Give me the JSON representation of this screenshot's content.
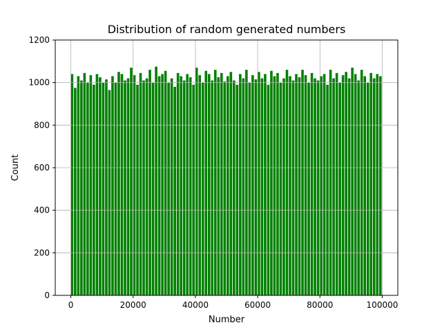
{
  "chart_data": {
    "type": "bar",
    "title": "Distribution of random generated numbers",
    "xlabel": "Number",
    "ylabel": "Count",
    "xlim": [
      -5000,
      105000
    ],
    "ylim": [
      0,
      1200
    ],
    "xticks": [
      0,
      20000,
      40000,
      60000,
      80000,
      100000
    ],
    "xtick_labels": [
      "0",
      "20000",
      "40000",
      "60000",
      "80000",
      "100000"
    ],
    "yticks": [
      0,
      200,
      400,
      600,
      800,
      1000,
      1200
    ],
    "ytick_labels": [
      "0",
      "200",
      "400",
      "600",
      "800",
      "1000",
      "1200"
    ],
    "grid": true,
    "bar_color": "#008000",
    "bins": {
      "start": 0,
      "width": 1000,
      "count": 100,
      "bar_width_fraction": 0.8
    },
    "values": [
      1040,
      975,
      1030,
      1010,
      1045,
      1000,
      1035,
      990,
      1040,
      1025,
      1000,
      1015,
      965,
      1030,
      1000,
      1050,
      1040,
      1010,
      1020,
      1070,
      1035,
      990,
      1045,
      1010,
      1020,
      1060,
      1000,
      1075,
      1030,
      1040,
      1055,
      1000,
      1020,
      980,
      1045,
      1030,
      1010,
      1040,
      1025,
      990,
      1070,
      1035,
      1000,
      1055,
      1040,
      1010,
      1060,
      1025,
      1045,
      1005,
      1030,
      1050,
      1010,
      990,
      1040,
      1020,
      1060,
      1000,
      1035,
      1015,
      1050,
      1020,
      1040,
      990,
      1055,
      1030,
      1045,
      1000,
      1020,
      1060,
      1030,
      1010,
      1040,
      1025,
      1060,
      1035,
      1000,
      1045,
      1020,
      1010,
      1030,
      1040,
      990,
      1060,
      1020,
      1045,
      1000,
      1035,
      1050,
      1020,
      1070,
      1040,
      1010,
      1060,
      1030,
      1000,
      1045,
      1020,
      1040,
      1030
    ]
  }
}
